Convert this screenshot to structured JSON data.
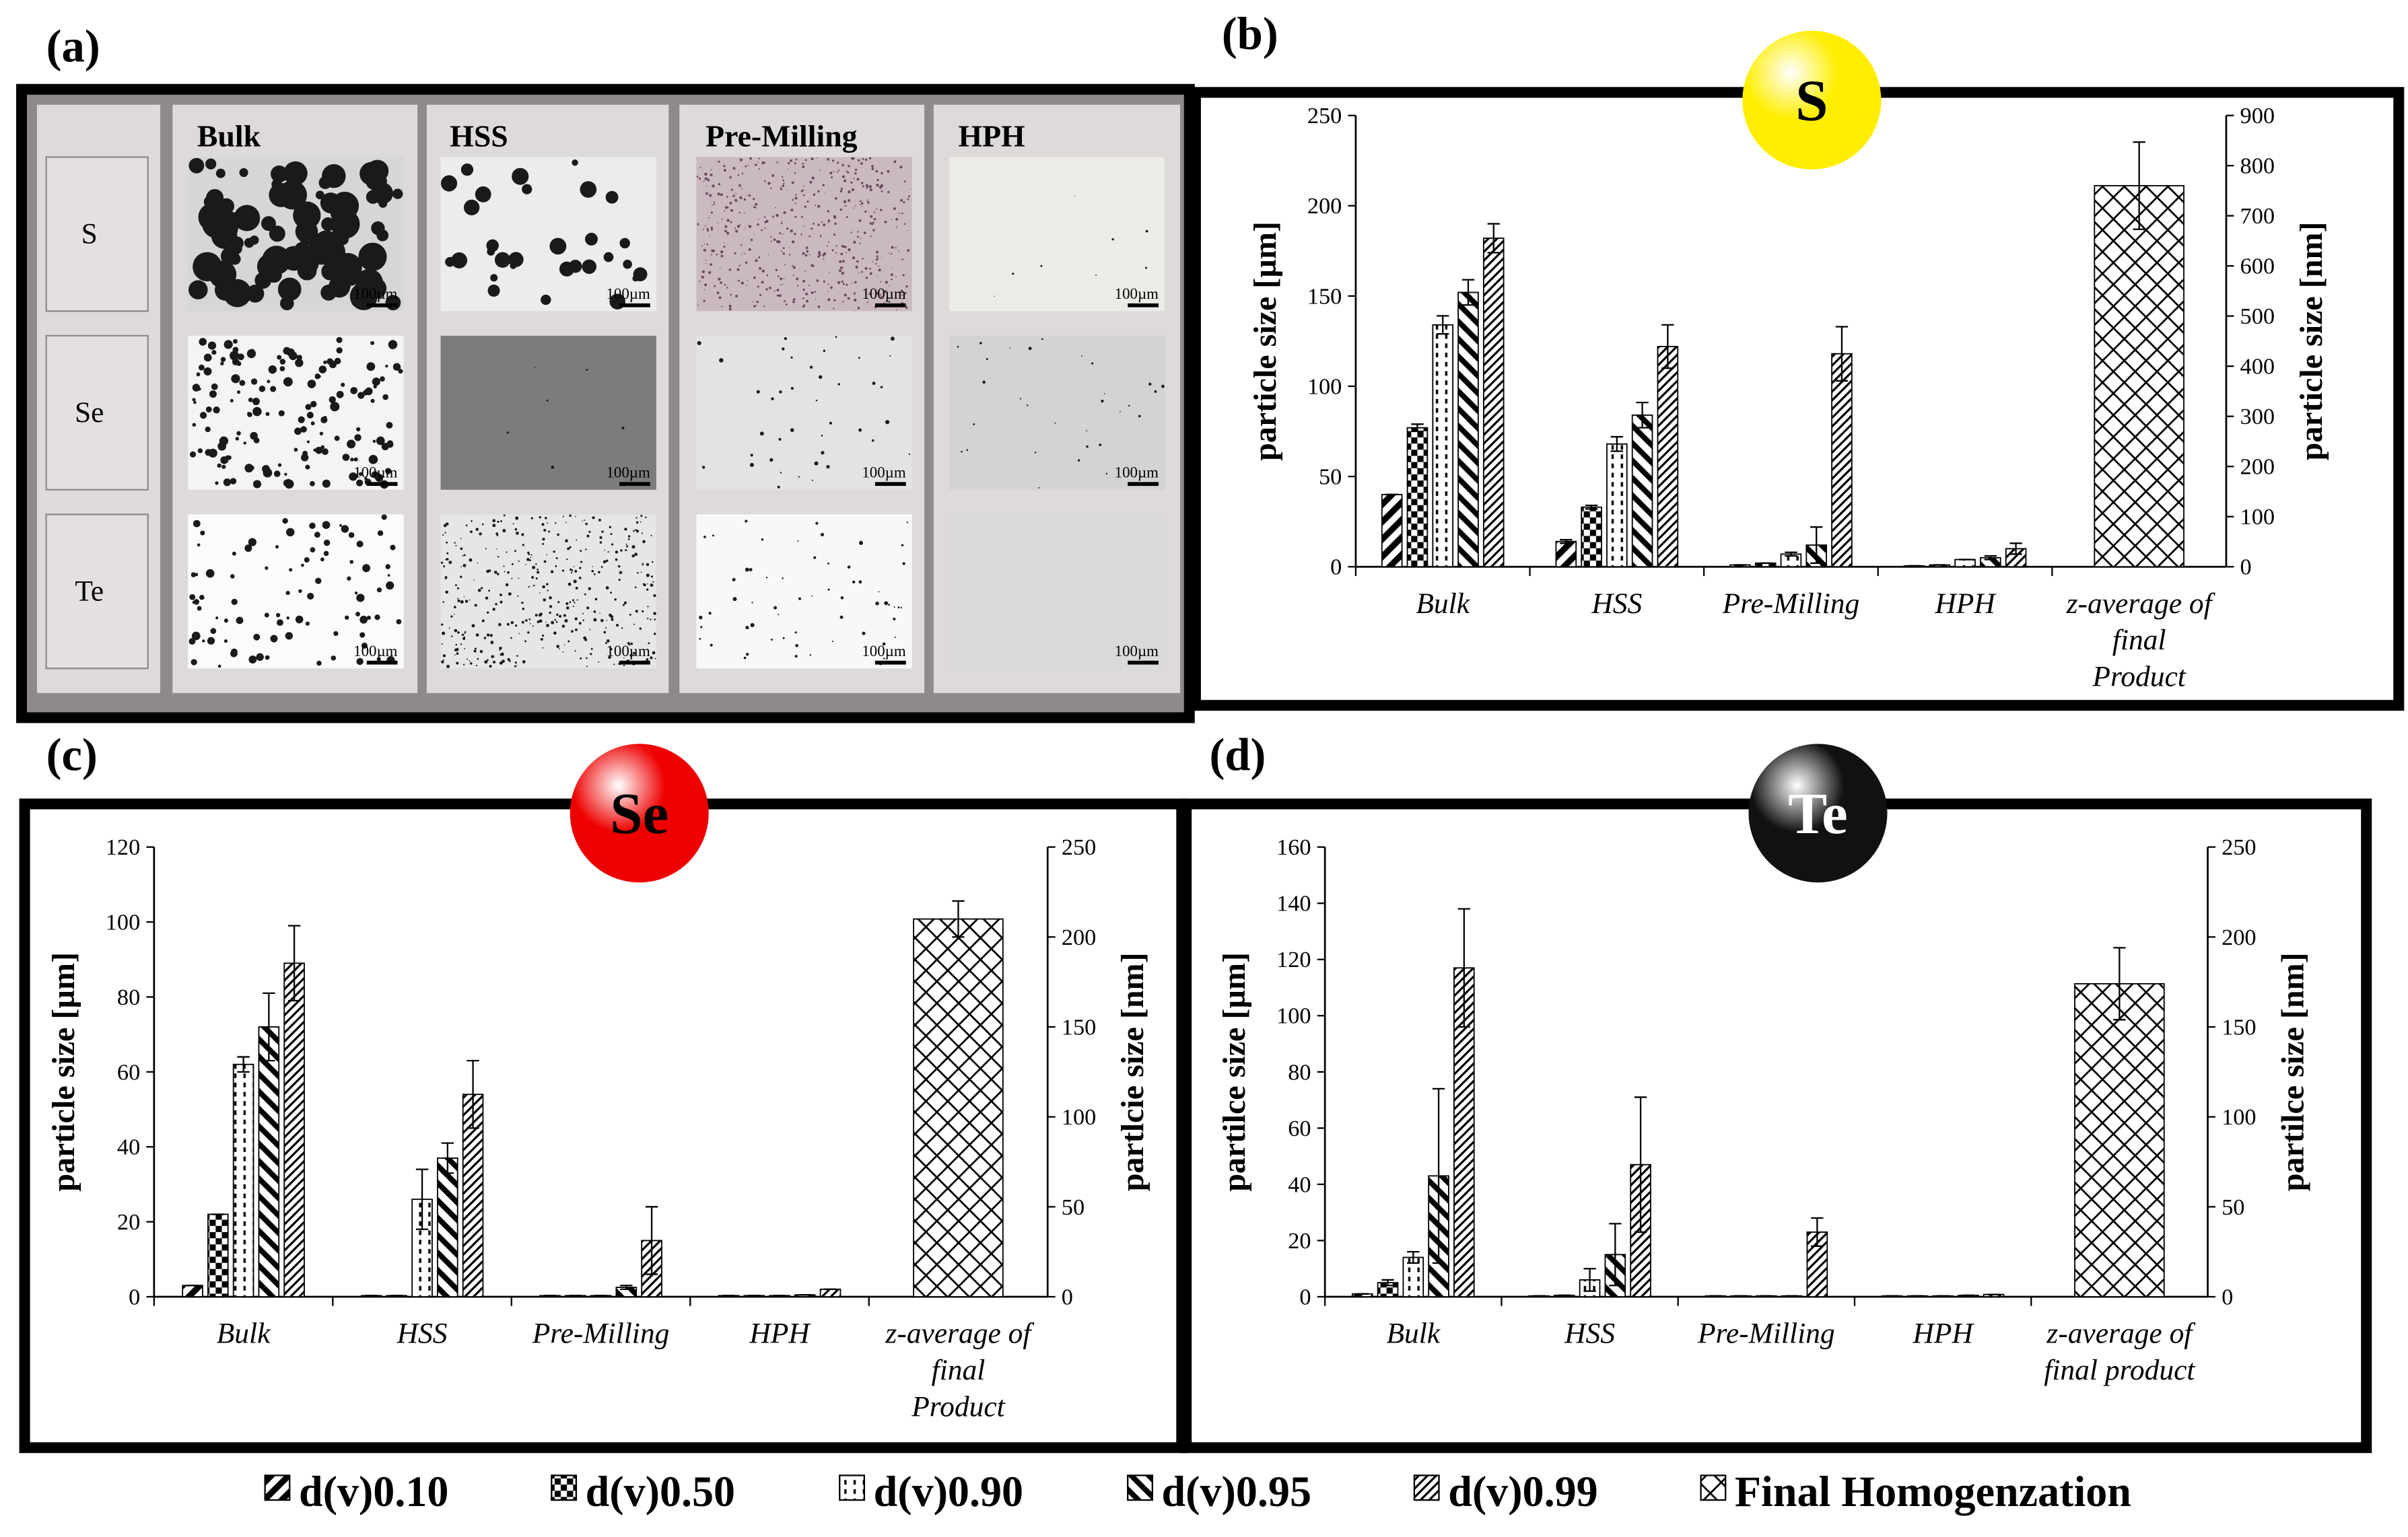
{
  "micrographs": {
    "panel_label": "(a)",
    "rows": [
      "S",
      "Se",
      "Te"
    ],
    "columns": [
      "Bulk",
      "HSS",
      "Pre-Milling",
      "HPH"
    ],
    "scale_bar": "100µm"
  },
  "legend": [
    {
      "name": "d(v)0.10",
      "pattern": "diagonal"
    },
    {
      "name": "d(v)0.50",
      "pattern": "checker"
    },
    {
      "name": "d(v)0.90",
      "pattern": "dotted"
    },
    {
      "name": "d(v)0.95",
      "pattern": "backslash"
    },
    {
      "name": "d(v)0.99",
      "pattern": "fine-diagonal"
    },
    {
      "name": "Final Homogenzation",
      "pattern": "crosshatch"
    }
  ],
  "chart_data": [
    {
      "type": "bar",
      "panel_label": "(b)",
      "element": "S",
      "element_color": "#ffee00",
      "ylabel": "particle size [µm]",
      "y2label": "particle size [nm]",
      "categories": [
        "Bulk",
        "HSS",
        "Pre-Milling",
        "HPH",
        "z-average of\nfinal\nProduct"
      ],
      "ylim": [
        0,
        250
      ],
      "yticks": [
        0,
        50,
        100,
        150,
        200,
        250
      ],
      "y2lim": [
        0,
        900
      ],
      "y2ticks": [
        0,
        100,
        200,
        300,
        400,
        500,
        600,
        700,
        800,
        900
      ],
      "series": [
        {
          "values": [
            40,
            14,
            1,
            0.5,
            null
          ],
          "errors": [
            0,
            1,
            0,
            0,
            null
          ]
        },
        {
          "values": [
            77,
            33,
            2,
            1,
            null
          ],
          "errors": [
            2,
            1,
            0,
            0,
            null
          ]
        },
        {
          "values": [
            134,
            68,
            7,
            4,
            null
          ],
          "errors": [
            5,
            4,
            1,
            0,
            null
          ]
        },
        {
          "values": [
            152,
            84,
            12,
            5,
            null
          ],
          "errors": [
            7,
            7,
            10,
            1,
            null
          ]
        },
        {
          "values": [
            182,
            122,
            118,
            10,
            null
          ],
          "errors": [
            8,
            12,
            15,
            3,
            null
          ]
        },
        {
          "axis": "y2",
          "values": [
            null,
            null,
            null,
            null,
            760
          ],
          "errors": [
            null,
            null,
            null,
            null,
            87
          ]
        }
      ]
    },
    {
      "type": "bar",
      "panel_label": "(c)",
      "element": "Se",
      "element_color": "#ee0000",
      "ylabel": "particle size [µm]",
      "y2label": "partlcie size [nm]",
      "categories": [
        "Bulk",
        "HSS",
        "Pre-Milling",
        "HPH",
        "z-average of\nfinal\nProduct"
      ],
      "ylim": [
        0,
        120
      ],
      "yticks": [
        0,
        20,
        40,
        60,
        80,
        100,
        120
      ],
      "y2lim": [
        0,
        250
      ],
      "y2ticks": [
        0,
        50,
        100,
        150,
        200,
        250
      ],
      "series": [
        {
          "values": [
            3,
            0.3,
            0.3,
            0.3,
            null
          ],
          "errors": [
            0,
            0,
            0,
            0,
            null
          ]
        },
        {
          "values": [
            22,
            0.3,
            0.3,
            0.3,
            null
          ],
          "errors": [
            0,
            0,
            0,
            0,
            null
          ]
        },
        {
          "values": [
            62,
            26,
            0.3,
            0.3,
            null
          ],
          "errors": [
            2,
            8,
            0,
            0,
            null
          ]
        },
        {
          "values": [
            72,
            37,
            2.5,
            0.5,
            null
          ],
          "errors": [
            9,
            4,
            0.5,
            0,
            null
          ]
        },
        {
          "values": [
            89,
            54,
            15,
            2,
            null
          ],
          "errors": [
            10,
            9,
            9,
            0,
            null
          ]
        },
        {
          "axis": "y2",
          "values": [
            null,
            null,
            null,
            null,
            210
          ],
          "errors": [
            null,
            null,
            null,
            null,
            10
          ]
        }
      ]
    },
    {
      "type": "bar",
      "panel_label": "(d)",
      "element": "Te",
      "element_color": "#111111",
      "ylabel": "partilce size [µm]",
      "y2label": "partilce size [nm]",
      "categories": [
        "Bulk",
        "HSS",
        "Pre-Milling",
        "HPH",
        "z-average of\nfinal product"
      ],
      "ylim": [
        0,
        160
      ],
      "yticks": [
        0,
        20,
        40,
        60,
        80,
        100,
        120,
        140,
        160
      ],
      "y2lim": [
        0,
        250
      ],
      "y2ticks": [
        0,
        50,
        100,
        150,
        200,
        250
      ],
      "series": [
        {
          "values": [
            1,
            0.3,
            0.3,
            0.3,
            null
          ],
          "errors": [
            0,
            0,
            0,
            0,
            null
          ]
        },
        {
          "values": [
            5,
            0.5,
            0.3,
            0.3,
            null
          ],
          "errors": [
            1,
            0,
            0,
            0,
            null
          ]
        },
        {
          "values": [
            14,
            6,
            0.3,
            0.3,
            null
          ],
          "errors": [
            2,
            4,
            0,
            0,
            null
          ]
        },
        {
          "values": [
            43,
            15,
            0.3,
            0.5,
            null
          ],
          "errors": [
            31,
            11,
            0,
            0,
            null
          ]
        },
        {
          "values": [
            117,
            47,
            23,
            0.8,
            null
          ],
          "errors": [
            21,
            24,
            5,
            0,
            null
          ]
        },
        {
          "axis": "y2",
          "values": [
            null,
            null,
            null,
            null,
            174
          ],
          "errors": [
            null,
            null,
            null,
            null,
            20
          ]
        }
      ]
    }
  ]
}
